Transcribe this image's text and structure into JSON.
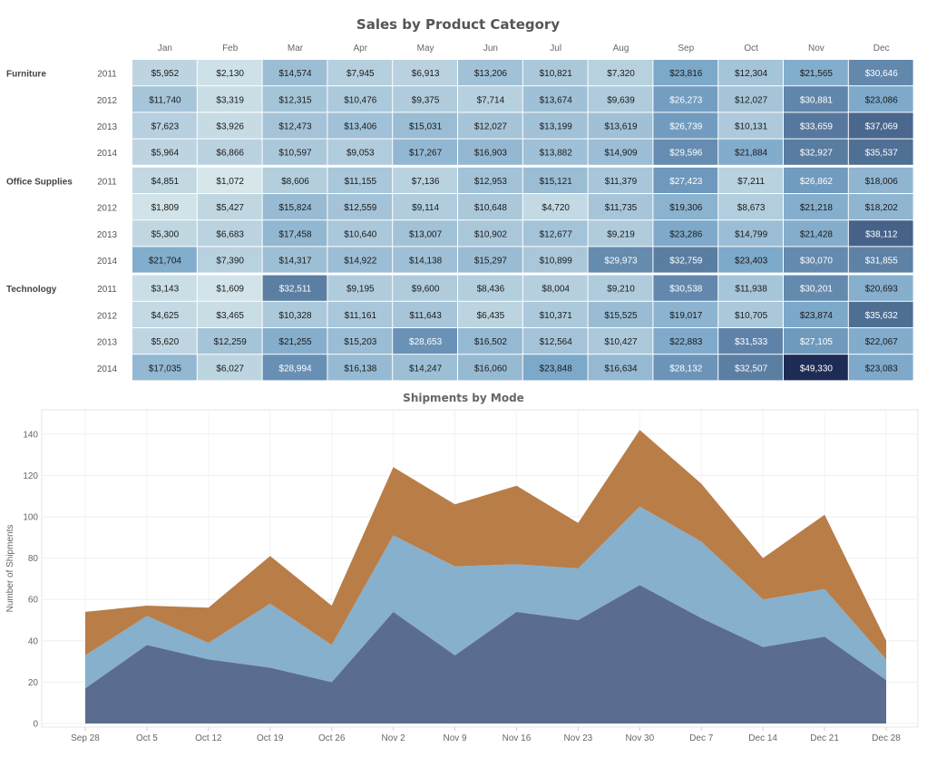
{
  "chart_data": [
    {
      "type": "heatmap",
      "title": "Sales by Product Category",
      "columns": [
        "Jan",
        "Feb",
        "Mar",
        "Apr",
        "May",
        "Jun",
        "Jul",
        "Aug",
        "Sep",
        "Oct",
        "Nov",
        "Dec"
      ],
      "groups": [
        {
          "category": "Furniture",
          "rows": [
            {
              "year": "2011",
              "values": [
                5952,
                2130,
                14574,
                7945,
                6913,
                13206,
                10821,
                7320,
                23816,
                12304,
                21565,
                30646
              ]
            },
            {
              "year": "2012",
              "values": [
                11740,
                3319,
                12315,
                10476,
                9375,
                7714,
                13674,
                9639,
                26273,
                12027,
                30881,
                23086
              ]
            },
            {
              "year": "2013",
              "values": [
                7623,
                3926,
                12473,
                13406,
                15031,
                12027,
                13199,
                13619,
                26739,
                10131,
                33659,
                37069
              ]
            },
            {
              "year": "2014",
              "values": [
                5964,
                6866,
                10597,
                9053,
                17267,
                16903,
                13882,
                14909,
                29596,
                21884,
                32927,
                35537
              ]
            }
          ]
        },
        {
          "category": "Office Supplies",
          "rows": [
            {
              "year": "2011",
              "values": [
                4851,
                1072,
                8606,
                11155,
                7136,
                12953,
                15121,
                11379,
                27423,
                7211,
                26862,
                18006
              ]
            },
            {
              "year": "2012",
              "values": [
                1809,
                5427,
                15824,
                12559,
                9114,
                10648,
                4720,
                11735,
                19306,
                8673,
                21218,
                18202
              ]
            },
            {
              "year": "2013",
              "values": [
                5300,
                6683,
                17458,
                10640,
                13007,
                10902,
                12677,
                9219,
                23286,
                14799,
                21428,
                38112
              ]
            },
            {
              "year": "2014",
              "values": [
                21704,
                7390,
                14317,
                14922,
                14138,
                15297,
                10899,
                29973,
                32759,
                23403,
                30070,
                31855
              ]
            }
          ]
        },
        {
          "category": "Technology",
          "rows": [
            {
              "year": "2011",
              "values": [
                3143,
                1609,
                32511,
                9195,
                9600,
                8436,
                8004,
                9210,
                30538,
                11938,
                30201,
                20693
              ]
            },
            {
              "year": "2012",
              "values": [
                4625,
                3465,
                10328,
                11161,
                11643,
                6435,
                10371,
                15525,
                19017,
                10705,
                23874,
                35632
              ]
            },
            {
              "year": "2013",
              "values": [
                5620,
                12259,
                21255,
                15203,
                28653,
                16502,
                12564,
                10427,
                22883,
                31533,
                27105,
                22067
              ]
            },
            {
              "year": "2014",
              "values": [
                17035,
                6027,
                28994,
                16138,
                14247,
                16060,
                23848,
                16634,
                28132,
                32507,
                49330,
                23083
              ]
            }
          ]
        }
      ],
      "currency_symbol": "$",
      "color_range": [
        "#d6e6ea",
        "#1e2c55"
      ]
    },
    {
      "type": "area",
      "stacked": true,
      "title": "Shipments by Mode",
      "ylabel": "Number of Shipments",
      "categories": [
        "Sep 28",
        "Oct 5",
        "Oct 12",
        "Oct 19",
        "Oct 26",
        "Nov 2",
        "Nov 9",
        "Nov 16",
        "Nov 23",
        "Nov 30",
        "Dec 7",
        "Dec 14",
        "Dec 21",
        "Dec 28"
      ],
      "series": [
        {
          "values": [
            17,
            38,
            31,
            27,
            20,
            54,
            33,
            54,
            50,
            67,
            51,
            37,
            42,
            21
          ],
          "color": "#5b6d8f"
        },
        {
          "values": [
            16,
            14,
            8,
            31,
            18,
            37,
            43,
            23,
            25,
            38,
            37,
            23,
            23,
            10
          ],
          "color": "#86b0cc"
        },
        {
          "values": [
            21,
            5,
            17,
            23,
            19,
            33,
            30,
            38,
            22,
            37,
            28,
            20,
            36,
            9
          ],
          "color": "#b97d48"
        }
      ],
      "ylim": [
        0,
        150
      ],
      "yticks": [
        0,
        20,
        40,
        60,
        80,
        100,
        120,
        140
      ],
      "grid": true
    }
  ]
}
